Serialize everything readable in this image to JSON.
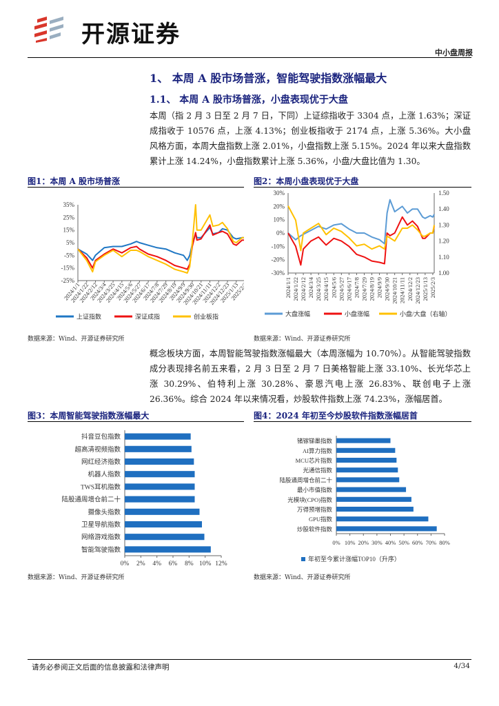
{
  "header": {
    "logo_text": "开源证券",
    "report_type": "中小盘周报"
  },
  "section": {
    "h1": "1、 本周 A 股市场普涨，智能驾驶指数涨幅最大",
    "h2": "1.1、 本周 A 股市场普涨，小盘表现优于大盘"
  },
  "paragraphs": [
    "本周（指 2 月 3 日至 2 月 7 日，下同）上证综指收于 3304 点，上涨 1.63%；深证成指收于 10576 点，上涨 4.13%；创业板指收于 2174 点，上涨 5.36%。大小盘风格方面，本周大盘指数上涨 2.01%，小盘指数上涨 5.15%。2024 年以来大盘指数累计上涨 14.24%，小盘指数累计上涨 5.36%，小盘/大盘比值为 1.30。",
    "概念板块方面，本周智能驾驶指数涨幅最大（本周涨幅为 10.70%）。从智能驾驶指数成分表现排名前五来看，2 月 3 日至 2 月 7 日美格智能上涨 33.10%、长光华芯上涨 30.29%、伯特利上涨 30.28%、豪恩汽电上涨 26.83%、联创电子上涨 26.36%。综合 2024 年以来情况看，炒股软件指数上涨 74.23%，涨幅居首。"
  ],
  "figures": {
    "fig1_title": "图1：本周 A 股市场普涨",
    "fig2_title": "图2：本周小盘表现优于大盘",
    "fig3_title": "图3：本周智能驾驶指数涨幅最大",
    "fig4_title": "图4：2024 年初至今炒股软件指数涨幅居首",
    "source": "数据来源：Wind、开源证券研究所"
  },
  "footer": {
    "disclaimer": "请务必参阅正文后面的信息披露和法律声明",
    "page": "4/34"
  },
  "chart_data": [
    {
      "type": "line",
      "title": "图1：本周 A 股市场普涨",
      "ylim": [
        -25,
        35
      ],
      "yticks": [
        35,
        25,
        15,
        5,
        -5,
        -15,
        -25
      ],
      "ytick_format": "%",
      "xticks": [
        "2024/1/1",
        "2024/1/22",
        "2024/2/12",
        "2024/3/4",
        "2024/3/25",
        "2024/4/15",
        "2024/5/6",
        "2024/5/27",
        "2024/6/17",
        "2024/7/8",
        "2024/7/29",
        "2024/8/19",
        "2024/9/9",
        "2024/9/30",
        "2024/10/21",
        "2024/11/11",
        "2024/12/2",
        "2024/12/23",
        "2025/1/13",
        "2025/2/3"
      ],
      "x": [
        "2024/1/1",
        "2024/1/22",
        "2024/2/5",
        "2024/2/12",
        "2024/3/4",
        "2024/3/25",
        "2024/4/15",
        "2024/5/6",
        "2024/5/20",
        "2024/5/27",
        "2024/6/17",
        "2024/7/8",
        "2024/7/29",
        "2024/8/19",
        "2024/9/9",
        "2024/9/18",
        "2024/9/24",
        "2024/9/30",
        "2024/10/8",
        "2024/10/11",
        "2024/10/21",
        "2024/11/11",
        "2024/11/18",
        "2024/12/2",
        "2024/12/11",
        "2024/12/23",
        "2025/1/6",
        "2025/1/13",
        "2025/1/27",
        "2025/2/3",
        "2025/2/7"
      ],
      "series": [
        {
          "name": "上证指数",
          "color": "#1f77c4",
          "values": [
            0,
            -4,
            -9,
            -5,
            1,
            2,
            2,
            4,
            6,
            5,
            3,
            1,
            0,
            -3,
            -5,
            -9,
            -5,
            4,
            12,
            9,
            9,
            17,
            12,
            13,
            16,
            15,
            9,
            8,
            9,
            9,
            11
          ]
        },
        {
          "name": "深证成指",
          "color": "#ee1111",
          "values": [
            0,
            -7,
            -15,
            -9,
            -4,
            0,
            -3,
            1,
            2,
            0,
            -4,
            -6,
            -9,
            -13,
            -15,
            -16,
            -12,
            2,
            13,
            7,
            8,
            19,
            11,
            13,
            14,
            12,
            4,
            3,
            7,
            7,
            11
          ]
        },
        {
          "name": "创业板指",
          "color": "#ffc000",
          "values": [
            0,
            -9,
            -18,
            -10,
            -5,
            -1,
            -6,
            -1,
            -1,
            -2,
            -6,
            -9,
            -12,
            -16,
            -18,
            -19,
            -14,
            5,
            35,
            15,
            15,
            27,
            18,
            19,
            21,
            16,
            6,
            5,
            9,
            9,
            15
          ]
        }
      ],
      "legend": "bottom"
    },
    {
      "type": "line",
      "title": "图2：本周小盘表现优于大盘",
      "ylim": [
        -30,
        30
      ],
      "yticks": [
        30,
        20,
        10,
        0,
        -10,
        -20,
        -30
      ],
      "ytick_format": "%",
      "y2lim": [
        1.0,
        1.5
      ],
      "y2ticks": [
        1.5,
        1.4,
        1.3,
        1.2,
        1.1,
        1.0
      ],
      "xticks": [
        "2024/1/1",
        "2024/1/22",
        "2024/2/12",
        "2024/3/4",
        "2024/3/25",
        "2024/4/15",
        "2024/5/6",
        "2024/5/27",
        "2024/6/17",
        "2024/7/8",
        "2024/7/29",
        "2024/8/19",
        "2024/9/9",
        "2024/9/30",
        "2024/10/21",
        "2024/11/11",
        "2024/12/2",
        "2024/12/23",
        "2025/1/13",
        "2025/2/3"
      ],
      "x": [
        "2024/1/1",
        "2024/1/22",
        "2024/2/5",
        "2024/2/12",
        "2024/3/4",
        "2024/3/25",
        "2024/4/15",
        "2024/5/6",
        "2024/5/27",
        "2024/6/17",
        "2024/7/8",
        "2024/7/29",
        "2024/8/19",
        "2024/9/9",
        "2024/9/23",
        "2024/9/30",
        "2024/10/8",
        "2024/10/21",
        "2024/11/11",
        "2024/11/25",
        "2024/12/9",
        "2024/12/23",
        "2025/1/6",
        "2025/1/13",
        "2025/1/27",
        "2025/2/3",
        "2025/2/7"
      ],
      "series": [
        {
          "name": "大盘涨幅",
          "color": "#5b9bd5",
          "axis": "left",
          "values": [
            0,
            -5,
            -2,
            -1,
            2,
            5,
            3,
            6,
            7,
            3,
            0,
            0,
            -3,
            -5,
            -8,
            15,
            25,
            16,
            20,
            15,
            18,
            18,
            12,
            11,
            13,
            12,
            14
          ]
        },
        {
          "name": "小盘涨幅",
          "color": "#ee1111",
          "axis": "left",
          "values": [
            0,
            -10,
            -24,
            -12,
            -6,
            -3,
            -9,
            -4,
            -6,
            -10,
            -16,
            -18,
            -21,
            -22,
            -23,
            0,
            -2,
            0,
            12,
            6,
            9,
            5,
            -4,
            -4,
            0,
            0,
            5
          ]
        },
        {
          "name": "小盘/大盘（右轴）",
          "color": "#ffc000",
          "axis": "right",
          "values": [
            1.42,
            1.33,
            1.14,
            1.25,
            1.28,
            1.31,
            1.24,
            1.28,
            1.26,
            1.22,
            1.17,
            1.18,
            1.15,
            1.17,
            1.15,
            1.23,
            1.22,
            1.2,
            1.28,
            1.28,
            1.3,
            1.27,
            1.23,
            1.23,
            1.25,
            1.25,
            1.3
          ]
        }
      ],
      "legend": "bottom"
    },
    {
      "type": "bar",
      "orientation": "horizontal",
      "title": "图3：本周智能驾驶指数涨幅最大",
      "xlim": [
        0,
        12
      ],
      "xticks": [
        "0%",
        "2%",
        "4%",
        "6%",
        "8%",
        "10%",
        "12%"
      ],
      "color": "#1f6fc0",
      "categories": [
        "抖音豆包指数",
        "超高清视频指数",
        "网红经济指数",
        "机器人指数",
        "TWS耳机指数",
        "陆股通周增仓前二十",
        "摄像头指数",
        "卫星导航指数",
        "网络游戏指数",
        "智能驾驶指数"
      ],
      "values": [
        8.2,
        8.3,
        8.6,
        8.7,
        8.7,
        8.7,
        9.3,
        9.6,
        9.9,
        10.7
      ]
    },
    {
      "type": "bar",
      "orientation": "horizontal",
      "title": "图4：2024 年初至今炒股软件指数涨幅居首",
      "xlim": [
        0,
        80
      ],
      "xticks": [
        "0%",
        "10%",
        "20%",
        "30%",
        "40%",
        "50%",
        "60%",
        "70%",
        "80%"
      ],
      "color": "#1f6fc0",
      "categories": [
        "锗镓锑墨指数",
        "AI算力指数",
        "MCU芯片指数",
        "光通信指数",
        "陆股通周增仓前二十",
        "最小市值指数",
        "光模块(CPO)指数",
        "万得预增指数",
        "GPU指数",
        "炒股软件指数"
      ],
      "values": [
        40,
        43.5,
        44.5,
        45.5,
        46.5,
        51.5,
        55.5,
        57,
        68,
        74.23
      ],
      "legend": "年初至今累计涨幅TOP10（升序）"
    }
  ]
}
